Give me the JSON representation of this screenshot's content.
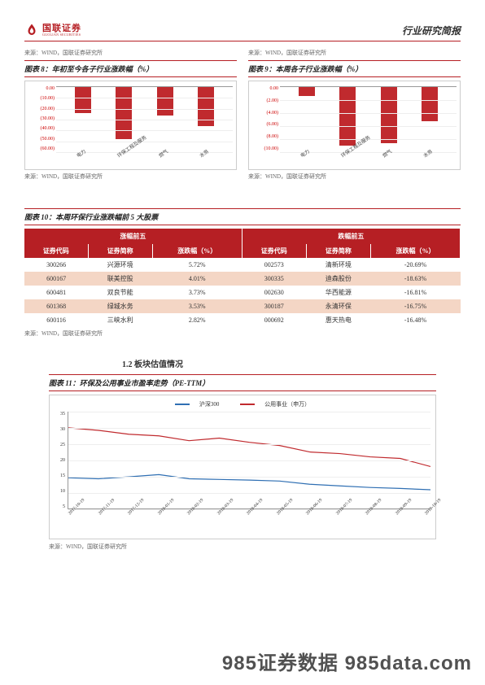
{
  "header": {
    "logo_cn": "国联证券",
    "logo_en": "GUOLIAN SECURITIES",
    "doc_type": "行业研究简报"
  },
  "source_label": "来源：WIND，国联证券研究所",
  "chart8": {
    "title": "图表 8：年初至今各子行业涨跌幅（%）",
    "type": "bar",
    "categories": [
      "电力",
      "环保工程及服务",
      "燃气",
      "水务"
    ],
    "values": [
      -24,
      -48,
      -26,
      -36
    ],
    "ytick_labels": [
      "0.00",
      "(10.00)",
      "(20.00)",
      "(30.00)",
      "(40.00)",
      "(50.00)",
      "(60.00)"
    ],
    "ymin": -60,
    "ymax": 0,
    "bar_color": "#c02a2e",
    "grid_color": "#eeeeee",
    "tick_color_red": true
  },
  "chart9": {
    "title": "图表 9：本周各子行业涨跌幅（%）",
    "type": "bar",
    "categories": [
      "电力",
      "环保工程及服务",
      "燃气",
      "水务"
    ],
    "values": [
      -1.4,
      -9.0,
      -8.6,
      -5.2
    ],
    "ytick_labels": [
      "0.00",
      "(2.00)",
      "(4.00)",
      "(6.00)",
      "(8.00)",
      "(10.00)"
    ],
    "ymin": -10,
    "ymax": 0,
    "bar_color": "#c02a2e",
    "grid_color": "#eeeeee",
    "tick_color_red": true
  },
  "table10": {
    "title": "图表 10：本周环保行业涨跌幅前 5 大股票",
    "group_headers": [
      "涨幅前五",
      "跌幅前五"
    ],
    "columns": [
      "证券代码",
      "证券简称",
      "涨跌幅（%）",
      "证券代码",
      "证券简称",
      "涨跌幅（%）"
    ],
    "rows": [
      [
        "300266",
        "兴源环境",
        "5.72%",
        "002573",
        "清新环境",
        "-20.69%"
      ],
      [
        "600167",
        "联美控股",
        "4.01%",
        "300335",
        "迪森股份",
        "-18.63%"
      ],
      [
        "600481",
        "双良节能",
        "3.73%",
        "002630",
        "华西能源",
        "-16.81%"
      ],
      [
        "601368",
        "绿城水务",
        "3.53%",
        "300187",
        "永清环保",
        "-16.75%"
      ],
      [
        "600116",
        "三峡水利",
        "2.82%",
        "000692",
        "惠天热电",
        "-16.48%"
      ]
    ],
    "alt_rows": [
      1,
      3
    ],
    "header_bg": "#b61f24",
    "alt_bg": "#f4d6c5"
  },
  "section_1_2": "1.2 板块估值情况",
  "chart11": {
    "title": "图表 11：环保及公用事业市盈率走势（PE-TTM）",
    "type": "line",
    "legend": [
      {
        "label": "沪深300",
        "color": "#2f6fb3"
      },
      {
        "label": "公用事业（申万）",
        "color": "#c02a2e"
      }
    ],
    "ylim": [
      5,
      35
    ],
    "ytick_step": 5,
    "yticks": [
      "35",
      "30",
      "25",
      "20",
      "15",
      "10",
      "5"
    ],
    "x_labels": [
      "2017-10-19",
      "2017-11-19",
      "2017-12-19",
      "2018-01-19",
      "2018-02-19",
      "2018-03-19",
      "2018-04-19",
      "2018-05-19",
      "2018-06-19",
      "2018-07-19",
      "2018-08-19",
      "2018-09-19",
      "2018-10-19"
    ],
    "series": {
      "hs300": [
        14.5,
        14.2,
        14.8,
        15.5,
        14.2,
        14.0,
        13.8,
        13.5,
        12.5,
        12.0,
        11.5,
        11.2,
        10.8
      ],
      "util": [
        30.0,
        29.2,
        28.0,
        27.5,
        26.0,
        26.8,
        25.5,
        24.5,
        22.5,
        22.0,
        21.0,
        20.5,
        18.0
      ]
    },
    "grid_color": "#eeeeee",
    "background_color": "#ffffff"
  },
  "watermark": "985证券数据 985data.com"
}
